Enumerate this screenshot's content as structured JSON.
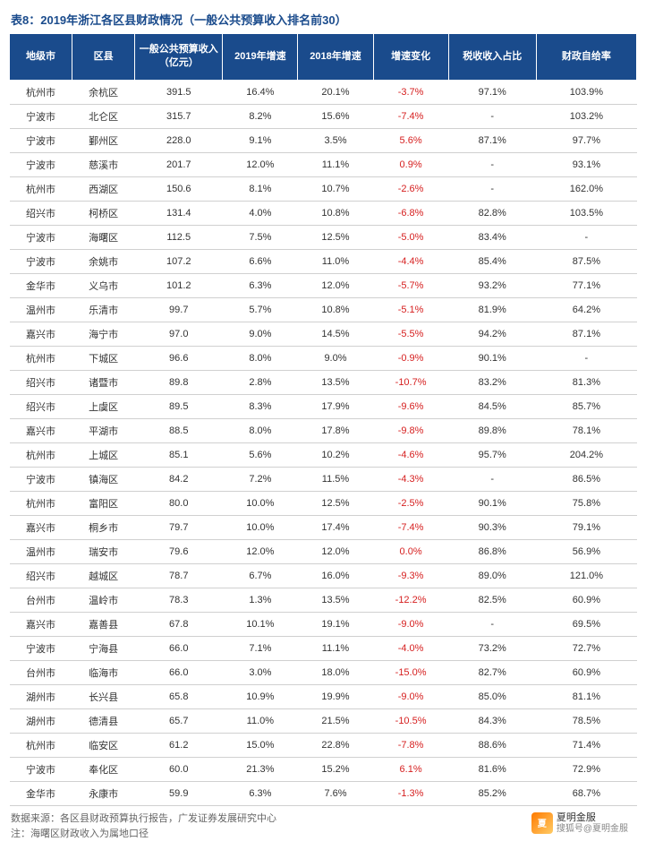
{
  "title": "表8：2019年浙江各区县财政情况（一般公共预算收入排名前30）",
  "table": {
    "type": "table",
    "header_bg": "#1a4b8c",
    "header_color": "#ffffff",
    "border_color": "#d0d0d0",
    "negative_color": "#d62020",
    "text_color": "#333333",
    "columns": [
      "地级市",
      "区县",
      "一般公共预算收入（亿元）",
      "2019年增速",
      "2018年增速",
      "增速变化",
      "税收收入占比",
      "财政自给率"
    ],
    "rows": [
      [
        "杭州市",
        "余杭区",
        "391.5",
        "16.4%",
        "20.1%",
        "-3.7%",
        "97.1%",
        "103.9%"
      ],
      [
        "宁波市",
        "北仑区",
        "315.7",
        "8.2%",
        "15.6%",
        "-7.4%",
        "-",
        "103.2%"
      ],
      [
        "宁波市",
        "鄞州区",
        "228.0",
        "9.1%",
        "3.5%",
        "5.6%",
        "87.1%",
        "97.7%"
      ],
      [
        "宁波市",
        "慈溪市",
        "201.7",
        "12.0%",
        "11.1%",
        "0.9%",
        "-",
        "93.1%"
      ],
      [
        "杭州市",
        "西湖区",
        "150.6",
        "8.1%",
        "10.7%",
        "-2.6%",
        "-",
        "162.0%"
      ],
      [
        "绍兴市",
        "柯桥区",
        "131.4",
        "4.0%",
        "10.8%",
        "-6.8%",
        "82.8%",
        "103.5%"
      ],
      [
        "宁波市",
        "海曙区",
        "112.5",
        "7.5%",
        "12.5%",
        "-5.0%",
        "83.4%",
        "-"
      ],
      [
        "宁波市",
        "余姚市",
        "107.2",
        "6.6%",
        "11.0%",
        "-4.4%",
        "85.4%",
        "87.5%"
      ],
      [
        "金华市",
        "义乌市",
        "101.2",
        "6.3%",
        "12.0%",
        "-5.7%",
        "93.2%",
        "77.1%"
      ],
      [
        "温州市",
        "乐清市",
        "99.7",
        "5.7%",
        "10.8%",
        "-5.1%",
        "81.9%",
        "64.2%"
      ],
      [
        "嘉兴市",
        "海宁市",
        "97.0",
        "9.0%",
        "14.5%",
        "-5.5%",
        "94.2%",
        "87.1%"
      ],
      [
        "杭州市",
        "下城区",
        "96.6",
        "8.0%",
        "9.0%",
        "-0.9%",
        "90.1%",
        "-"
      ],
      [
        "绍兴市",
        "诸暨市",
        "89.8",
        "2.8%",
        "13.5%",
        "-10.7%",
        "83.2%",
        "81.3%"
      ],
      [
        "绍兴市",
        "上虞区",
        "89.5",
        "8.3%",
        "17.9%",
        "-9.6%",
        "84.5%",
        "85.7%"
      ],
      [
        "嘉兴市",
        "平湖市",
        "88.5",
        "8.0%",
        "17.8%",
        "-9.8%",
        "89.8%",
        "78.1%"
      ],
      [
        "杭州市",
        "上城区",
        "85.1",
        "5.6%",
        "10.2%",
        "-4.6%",
        "95.7%",
        "204.2%"
      ],
      [
        "宁波市",
        "镇海区",
        "84.2",
        "7.2%",
        "11.5%",
        "-4.3%",
        "-",
        "86.5%"
      ],
      [
        "杭州市",
        "富阳区",
        "80.0",
        "10.0%",
        "12.5%",
        "-2.5%",
        "90.1%",
        "75.8%"
      ],
      [
        "嘉兴市",
        "桐乡市",
        "79.7",
        "10.0%",
        "17.4%",
        "-7.4%",
        "90.3%",
        "79.1%"
      ],
      [
        "温州市",
        "瑞安市",
        "79.6",
        "12.0%",
        "12.0%",
        "0.0%",
        "86.8%",
        "56.9%"
      ],
      [
        "绍兴市",
        "越城区",
        "78.7",
        "6.7%",
        "16.0%",
        "-9.3%",
        "89.0%",
        "121.0%"
      ],
      [
        "台州市",
        "温岭市",
        "78.3",
        "1.3%",
        "13.5%",
        "-12.2%",
        "82.5%",
        "60.9%"
      ],
      [
        "嘉兴市",
        "嘉善县",
        "67.8",
        "10.1%",
        "19.1%",
        "-9.0%",
        "-",
        "69.5%"
      ],
      [
        "宁波市",
        "宁海县",
        "66.0",
        "7.1%",
        "11.1%",
        "-4.0%",
        "73.2%",
        "72.7%"
      ],
      [
        "台州市",
        "临海市",
        "66.0",
        "3.0%",
        "18.0%",
        "-15.0%",
        "82.7%",
        "60.9%"
      ],
      [
        "湖州市",
        "长兴县",
        "65.8",
        "10.9%",
        "19.9%",
        "-9.0%",
        "85.0%",
        "81.1%"
      ],
      [
        "湖州市",
        "德清县",
        "65.7",
        "11.0%",
        "21.5%",
        "-10.5%",
        "84.3%",
        "78.5%"
      ],
      [
        "杭州市",
        "临安区",
        "61.2",
        "15.0%",
        "22.8%",
        "-7.8%",
        "88.6%",
        "71.4%"
      ],
      [
        "宁波市",
        "奉化区",
        "60.0",
        "21.3%",
        "15.2%",
        "6.1%",
        "81.6%",
        "72.9%"
      ],
      [
        "金华市",
        "永康市",
        "59.9",
        "6.3%",
        "7.6%",
        "-1.3%",
        "85.2%",
        "68.7%"
      ]
    ]
  },
  "footnotes": {
    "source": "数据来源：各区县财政预算执行报告，广发证券发展研究中心",
    "note": "注：海曙区财政收入为属地口径"
  },
  "watermark": {
    "name": "夏明金服",
    "sub": "搜狐号@夏明金服",
    "logo_text": "夏"
  }
}
